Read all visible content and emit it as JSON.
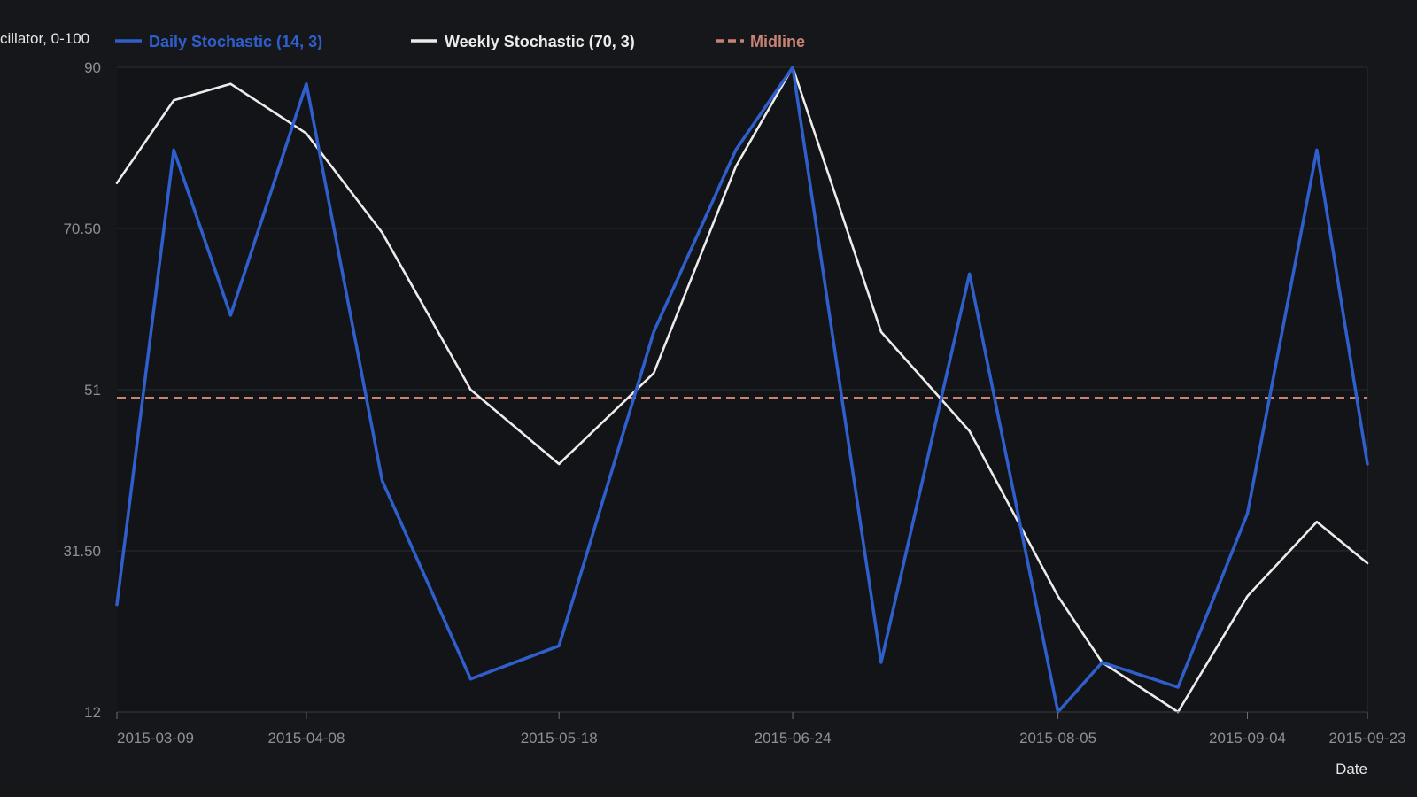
{
  "chart_data": {
    "type": "line",
    "ylabel": "cillator, 0-100",
    "xlabel": "Date",
    "ylim": [
      12,
      90
    ],
    "y_ticks": [
      12,
      31.5,
      51,
      70.5,
      90
    ],
    "y_tick_labels": [
      "12",
      "31.50",
      "51",
      "70.50",
      "90"
    ],
    "x_tick_labels": [
      "2015-03-09",
      "2015-04-08",
      "2015-05-18",
      "2015-06-24",
      "2015-08-05",
      "2015-09-04",
      "2015-09-23"
    ],
    "x_tick_dates": [
      "2015-03-09",
      "2015-04-08",
      "2015-05-18",
      "2015-06-24",
      "2015-08-05",
      "2015-09-04",
      "2015-09-23"
    ],
    "x": [
      "2015-03-09",
      "2015-03-18",
      "2015-03-27",
      "2015-04-08",
      "2015-04-20",
      "2015-05-04",
      "2015-05-18",
      "2015-06-02",
      "2015-06-15",
      "2015-06-24",
      "2015-07-08",
      "2015-07-22",
      "2015-08-05",
      "2015-08-12",
      "2015-08-24",
      "2015-09-04",
      "2015-09-15",
      "2015-09-23"
    ],
    "series": [
      {
        "name": "Daily Stochastic (14, 3)",
        "color": "#2f5fcc",
        "dash": "solid",
        "values": [
          25,
          80,
          60,
          88,
          40,
          16,
          20,
          58,
          80,
          90,
          18,
          65,
          12,
          18,
          15,
          36,
          80,
          42
        ]
      },
      {
        "name": "Weekly Stochastic (70, 3)",
        "color": "#ececec",
        "dash": "solid",
        "values": [
          76,
          86,
          88,
          82,
          70,
          51,
          42,
          53,
          78,
          90,
          58,
          46,
          26,
          18,
          12,
          26,
          35,
          30
        ]
      },
      {
        "name": "Midline",
        "color": "#c98274",
        "dash": "dashed",
        "values": [
          50,
          50,
          50,
          50,
          50,
          50,
          50,
          50,
          50,
          50,
          50,
          50,
          50,
          50,
          50,
          50,
          50,
          50
        ]
      }
    ],
    "grid": true,
    "legend": "top"
  }
}
